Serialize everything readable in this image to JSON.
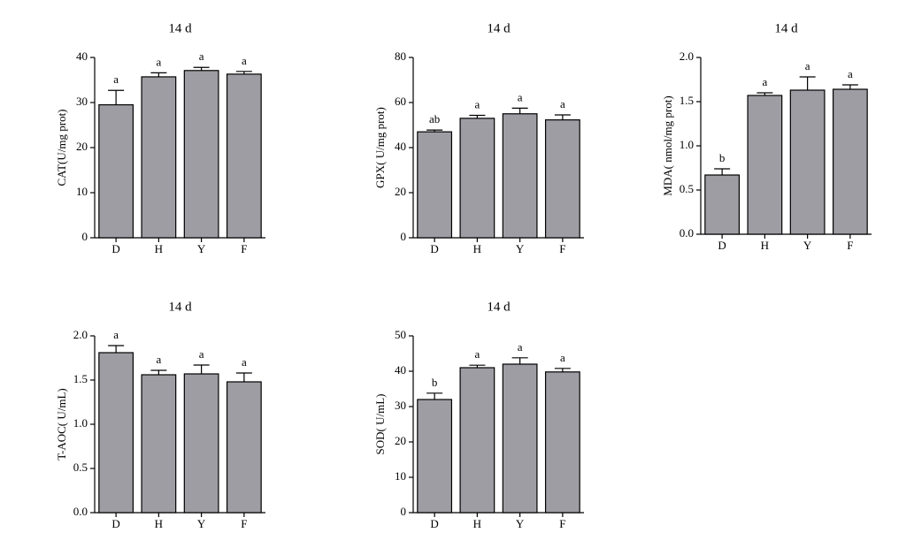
{
  "chart_data": [
    {
      "type": "bar",
      "title": "14 d",
      "ylabel": "CAT(U/mg prot)",
      "categories": [
        "D",
        "H",
        "Y",
        "F"
      ],
      "values": [
        29.5,
        35.7,
        37.1,
        36.3
      ],
      "errors": [
        3.2,
        0.9,
        0.7,
        0.6
      ],
      "annotations": [
        "a",
        "a",
        "a",
        "a"
      ],
      "color": "#9d9da3",
      "ylim": [
        0,
        40
      ],
      "yticks": [
        0,
        10,
        20,
        30,
        40
      ]
    },
    {
      "type": "bar",
      "title": "14 d",
      "ylabel": "GPX(  U/mg prot)",
      "categories": [
        "D",
        "H",
        "Y",
        "F"
      ],
      "values": [
        47,
        53,
        55,
        52.3
      ],
      "errors": [
        0.8,
        1.3,
        2.5,
        2.2
      ],
      "annotations": [
        "ab",
        "a",
        "a",
        "a"
      ],
      "color": "#9d9da3",
      "ylim": [
        0,
        80
      ],
      "yticks": [
        0,
        20,
        40,
        60,
        80
      ]
    },
    {
      "type": "bar",
      "title": "14 d",
      "ylabel": "MDA( nmol/mg prot)",
      "categories": [
        "D",
        "H",
        "Y",
        "F"
      ],
      "values": [
        0.67,
        1.57,
        1.63,
        1.64
      ],
      "errors": [
        0.07,
        0.03,
        0.15,
        0.05
      ],
      "annotations": [
        "b",
        "a",
        "a",
        "a"
      ],
      "color": "#9d9da3",
      "ylim": [
        0,
        2
      ],
      "yticks": [
        {
          "value": 0,
          "label": "0.0"
        },
        0.5,
        {
          "value": 1,
          "label": "1.0"
        },
        1.5,
        {
          "value": 2,
          "label": "2.0"
        }
      ]
    },
    {
      "type": "bar",
      "title": "14 d",
      "ylabel": "T-AOC( U/mL)",
      "categories": [
        "D",
        "H",
        "Y",
        "F"
      ],
      "values": [
        1.81,
        1.56,
        1.57,
        1.48
      ],
      "errors": [
        0.08,
        0.05,
        0.1,
        0.1
      ],
      "annotations": [
        "a",
        "a",
        "a",
        "a"
      ],
      "color": "#9d9da3",
      "ylim": [
        0,
        2
      ],
      "yticks": [
        {
          "value": 0,
          "label": "0.0"
        },
        0.5,
        {
          "value": 1,
          "label": "1.0"
        },
        1.5,
        {
          "value": 2,
          "label": "2.0"
        }
      ]
    },
    {
      "type": "bar",
      "title": "14 d",
      "ylabel": "SOD( U/mL)",
      "categories": [
        "D",
        "H",
        "Y",
        "F"
      ],
      "values": [
        32,
        41,
        42,
        39.8
      ],
      "errors": [
        1.8,
        0.7,
        1.8,
        1.0
      ],
      "annotations": [
        "b",
        "a",
        "a",
        "a"
      ],
      "color": "#9d9da3",
      "ylim": [
        0,
        50
      ],
      "yticks": [
        0,
        10,
        20,
        30,
        40,
        50
      ]
    }
  ]
}
